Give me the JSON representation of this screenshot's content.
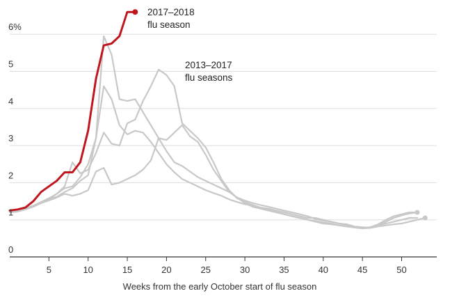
{
  "chart_data": {
    "type": "line",
    "title": "",
    "xlabel": "Weeks from the early October start of flu season",
    "ylabel": "",
    "xlim": [
      0,
      53
    ],
    "ylim": [
      0,
      6.5
    ],
    "grid": true,
    "colors": {
      "highlight": "#c0171f",
      "past": "#c8c8c8",
      "grid": "#dddddd",
      "axis": "#333333"
    },
    "x_ticks": [
      5,
      10,
      15,
      20,
      25,
      30,
      35,
      40,
      45,
      50
    ],
    "x_tick_labels": [
      "5",
      "10",
      "15",
      "20",
      "25",
      "30",
      "35",
      "40",
      "45",
      "50"
    ],
    "y_ticks": [
      0,
      1,
      2,
      3,
      4,
      5,
      6
    ],
    "y_tick_labels": [
      "0",
      "1",
      "2",
      "3",
      "4",
      "5",
      "6%"
    ],
    "annotations": {
      "current": [
        "2017–2018",
        "flu season"
      ],
      "past": [
        "2013–2017",
        "flu seasons"
      ]
    },
    "series": [
      {
        "highlight": true,
        "end_marker": true,
        "x": [
          0,
          1,
          2,
          3,
          4,
          5,
          6,
          7,
          8,
          9,
          10,
          11,
          12,
          13,
          14,
          15,
          16
        ],
        "y": [
          1.25,
          1.28,
          1.33,
          1.5,
          1.75,
          1.9,
          2.05,
          2.28,
          2.28,
          2.55,
          3.4,
          4.8,
          5.7,
          5.75,
          5.95,
          6.6,
          6.6
        ]
      },
      {
        "highlight": false,
        "end_marker": true,
        "x": [
          0,
          1,
          2,
          3,
          4,
          5,
          6,
          7,
          8,
          9,
          10,
          11,
          12,
          13,
          14,
          15,
          16,
          17,
          18,
          19,
          20,
          21,
          22,
          23,
          24,
          25,
          26,
          27,
          28,
          29,
          30,
          31,
          32,
          33,
          34,
          35,
          36,
          37,
          38,
          39,
          40,
          41,
          42,
          43,
          44,
          45,
          46,
          47,
          48,
          49,
          50,
          51,
          52
        ],
        "y": [
          1.2,
          1.22,
          1.28,
          1.35,
          1.45,
          1.55,
          1.7,
          1.85,
          1.9,
          2.15,
          2.5,
          3.2,
          4.6,
          4.25,
          3.55,
          3.3,
          3.4,
          3.35,
          3.1,
          2.8,
          2.5,
          2.28,
          2.1,
          2.0,
          1.9,
          1.8,
          1.72,
          1.65,
          1.55,
          1.48,
          1.42,
          1.38,
          1.32,
          1.28,
          1.22,
          1.15,
          1.1,
          1.05,
          1.0,
          0.97,
          0.93,
          0.9,
          0.85,
          0.82,
          0.79,
          0.77,
          0.78,
          0.85,
          0.95,
          1.05,
          1.12,
          1.17,
          1.2
        ]
      },
      {
        "highlight": false,
        "end_marker": false,
        "x": [
          0,
          1,
          2,
          3,
          4,
          5,
          6,
          7,
          8,
          9,
          10,
          11,
          12,
          13,
          14,
          15,
          16,
          17,
          18,
          19,
          20,
          21,
          22,
          23,
          24,
          25,
          26,
          27,
          28,
          29,
          30,
          31,
          32,
          33,
          34,
          35,
          36,
          37,
          38,
          39,
          40,
          41,
          42,
          43,
          44,
          45,
          46,
          47,
          48,
          49,
          50,
          51,
          52
        ],
        "y": [
          1.22,
          1.25,
          1.3,
          1.38,
          1.48,
          1.58,
          1.7,
          1.9,
          2.55,
          2.25,
          2.35,
          2.8,
          3.35,
          3.05,
          3.0,
          3.6,
          3.7,
          4.2,
          4.6,
          5.05,
          4.9,
          4.6,
          3.6,
          3.4,
          3.2,
          2.95,
          2.55,
          2.1,
          1.8,
          1.58,
          1.48,
          1.4,
          1.33,
          1.3,
          1.25,
          1.2,
          1.15,
          1.1,
          1.05,
          1.05,
          1.0,
          0.95,
          0.9,
          0.85,
          0.8,
          0.78,
          0.8,
          0.88,
          1.0,
          1.1,
          1.15,
          1.2,
          1.2
        ]
      },
      {
        "highlight": false,
        "end_marker": false,
        "x": [
          0,
          1,
          2,
          3,
          4,
          5,
          6,
          7,
          8,
          9,
          10,
          11,
          12,
          13,
          14,
          15,
          16,
          17,
          18,
          19,
          20,
          21,
          22,
          23,
          24,
          25,
          26,
          27,
          28,
          29,
          30,
          31,
          32,
          33,
          34,
          35,
          36,
          37,
          38,
          39,
          40,
          41,
          42,
          43,
          44,
          45,
          46,
          47,
          48,
          49,
          50,
          51,
          52
        ],
        "y": [
          1.25,
          1.27,
          1.3,
          1.36,
          1.45,
          1.52,
          1.6,
          1.7,
          1.65,
          1.7,
          1.8,
          2.3,
          2.4,
          1.95,
          2.0,
          2.1,
          2.2,
          2.35,
          2.6,
          3.2,
          3.15,
          3.35,
          3.55,
          3.25,
          3.1,
          2.75,
          2.35,
          2.05,
          1.75,
          1.6,
          1.45,
          1.35,
          1.3,
          1.25,
          1.2,
          1.15,
          1.1,
          1.05,
          1.0,
          0.95,
          0.9,
          0.88,
          0.85,
          0.82,
          0.8,
          0.78,
          0.8,
          0.85,
          0.9,
          0.95,
          1.0,
          1.05,
          1.05
        ]
      },
      {
        "highlight": false,
        "end_marker": true,
        "x": [
          0,
          1,
          2,
          3,
          4,
          5,
          6,
          7,
          8,
          9,
          10,
          11,
          12,
          13,
          14,
          15,
          16,
          17,
          18,
          19,
          20,
          21,
          22,
          23,
          24,
          25,
          26,
          27,
          28,
          29,
          30,
          31,
          32,
          33,
          34,
          35,
          36,
          37,
          38,
          39,
          40,
          41,
          42,
          43,
          44,
          45,
          46,
          47,
          48,
          49,
          50,
          51,
          52,
          53
        ],
        "y": [
          1.2,
          1.25,
          1.3,
          1.38,
          1.45,
          1.55,
          1.62,
          1.75,
          1.85,
          2.05,
          2.2,
          3.2,
          5.95,
          5.45,
          4.25,
          4.2,
          4.25,
          3.9,
          3.55,
          3.2,
          2.85,
          2.55,
          2.45,
          2.3,
          2.15,
          2.05,
          1.95,
          1.85,
          1.75,
          1.6,
          1.52,
          1.45,
          1.4,
          1.35,
          1.3,
          1.25,
          1.2,
          1.15,
          1.1,
          1.02,
          0.98,
          0.95,
          0.9,
          0.88,
          0.82,
          0.8,
          0.78,
          0.82,
          0.85,
          0.88,
          0.9,
          0.95,
          1.0,
          1.05
        ]
      }
    ]
  }
}
